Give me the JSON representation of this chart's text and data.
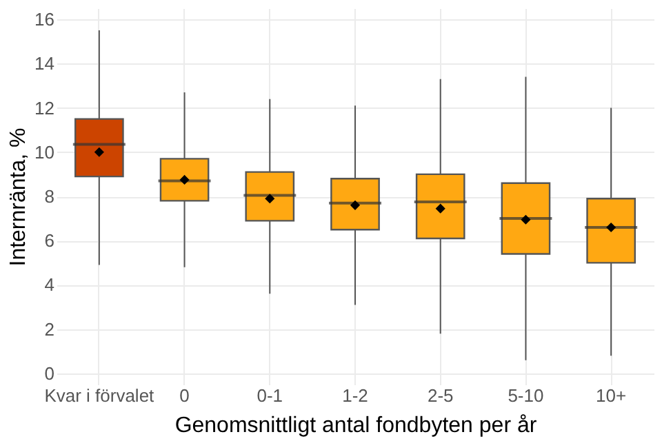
{
  "chart_data": {
    "type": "box",
    "xlabel": "Genomsnittligt antal fondbyten per år",
    "ylabel": "Internränta, %",
    "categories": [
      "Kvar i förvalet",
      "0",
      "0-1",
      "1-2",
      "2-5",
      "5-10",
      "10+"
    ],
    "colors": [
      "#cc4400",
      "#ffa812",
      "#ffa812",
      "#ffa812",
      "#ffa812",
      "#ffa812",
      "#ffa812"
    ],
    "boxes": [
      {
        "low": 4.9,
        "q1": 8.9,
        "median": 10.35,
        "q3": 11.5,
        "high": 15.5,
        "mean": 10.0
      },
      {
        "low": 4.8,
        "q1": 7.8,
        "median": 8.7,
        "q3": 9.7,
        "high": 12.7,
        "mean": 8.75
      },
      {
        "low": 3.6,
        "q1": 6.9,
        "median": 8.05,
        "q3": 9.1,
        "high": 12.4,
        "mean": 7.9
      },
      {
        "low": 3.1,
        "q1": 6.5,
        "median": 7.7,
        "q3": 8.8,
        "high": 12.1,
        "mean": 7.6
      },
      {
        "low": 1.8,
        "q1": 6.1,
        "median": 7.75,
        "q3": 9.0,
        "high": 13.3,
        "mean": 7.45
      },
      {
        "low": 0.6,
        "q1": 5.4,
        "median": 7.0,
        "q3": 8.6,
        "high": 13.4,
        "mean": 6.95
      },
      {
        "low": 0.8,
        "q1": 5.0,
        "median": 6.6,
        "q3": 7.9,
        "high": 12.0,
        "mean": 6.6
      }
    ],
    "ylim": [
      -0.5,
      16.5
    ],
    "yticks": [
      0,
      2,
      4,
      6,
      8,
      10,
      12,
      14,
      16
    ],
    "grid": true,
    "marker": "diamond"
  }
}
